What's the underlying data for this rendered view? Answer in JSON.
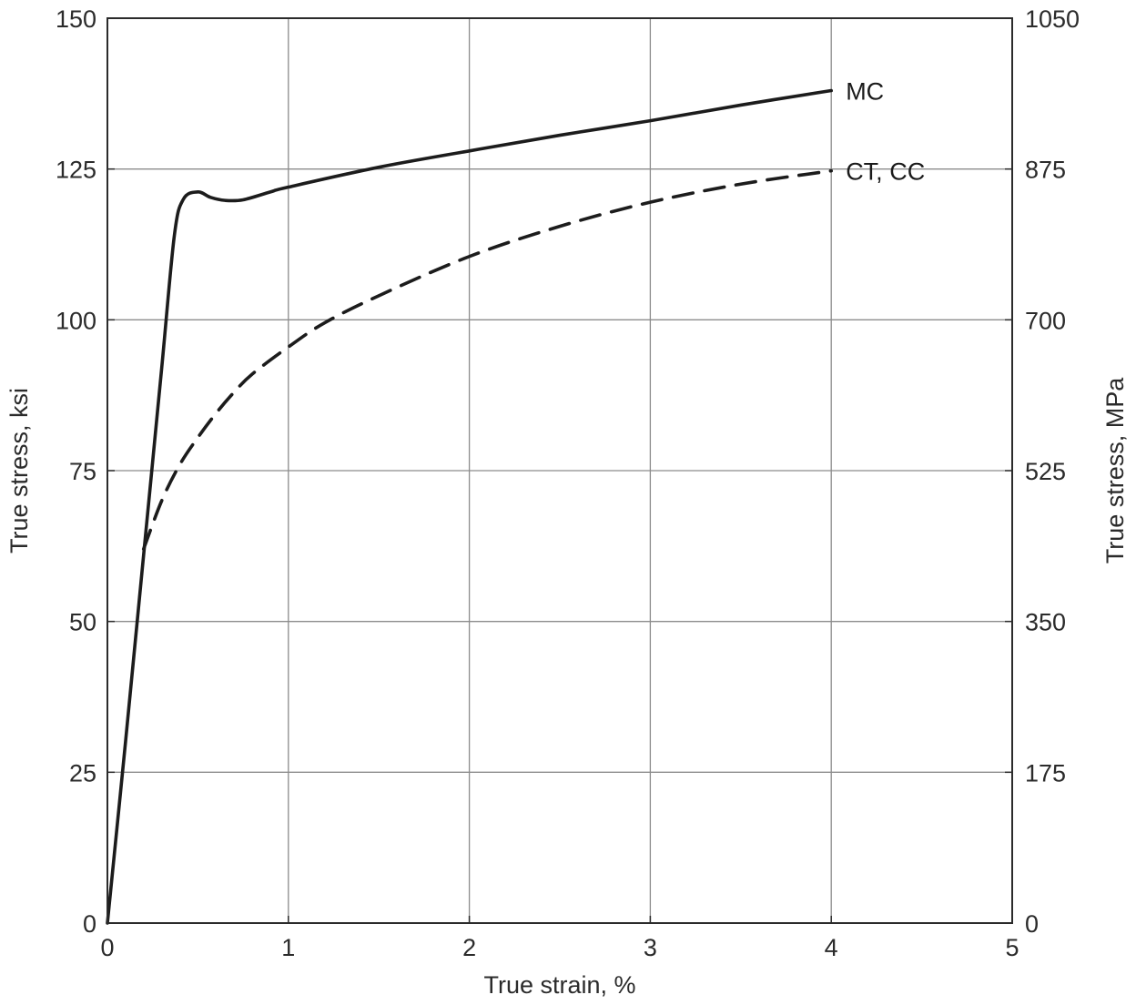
{
  "chart_data": {
    "type": "line",
    "xlabel": "True strain, %",
    "ylabel": "True stress, ksi",
    "y2label": "True stress, MPa",
    "xlim": [
      0,
      5
    ],
    "ylim": [
      0,
      150
    ],
    "y2lim": [
      0,
      1050
    ],
    "x_ticks": [
      0,
      1,
      2,
      3,
      4,
      5
    ],
    "x_tick_labels": [
      "0",
      "1",
      "2",
      "3",
      "4",
      "5"
    ],
    "y_ticks": [
      0,
      25,
      50,
      75,
      100,
      125,
      150
    ],
    "y_tick_labels": [
      "0",
      "25",
      "50",
      "75",
      "100",
      "125",
      "150"
    ],
    "y2_ticks": [
      0,
      175,
      350,
      525,
      700,
      875,
      1050
    ],
    "y2_tick_labels": [
      "0",
      "175",
      "350",
      "525",
      "700",
      "875",
      "1050"
    ],
    "grid": true,
    "series": [
      {
        "name": "MC",
        "style": "solid",
        "x": [
          0,
          0.1,
          0.2,
          0.3,
          0.37,
          0.42,
          0.5,
          0.57,
          0.65,
          0.75,
          0.9,
          1.0,
          1.5,
          2.0,
          2.5,
          3.0,
          3.5,
          4.0
        ],
        "y": [
          0,
          30,
          61,
          92,
          114,
          120,
          121.2,
          120.3,
          119.8,
          119.9,
          121.2,
          122,
          125.3,
          128,
          130.6,
          133,
          135.6,
          138
        ]
      },
      {
        "name": "CT, CC",
        "style": "dashed",
        "x": [
          0.2,
          0.3,
          0.4,
          0.5,
          0.6,
          0.7,
          0.8,
          1.0,
          1.2,
          1.5,
          2.0,
          2.5,
          3.0,
          3.5,
          4.0
        ],
        "y": [
          62,
          70,
          76,
          80.5,
          84.5,
          88,
          91,
          95.5,
          99.5,
          104,
          110.5,
          115.5,
          119.5,
          122.5,
          124.7
        ]
      }
    ]
  }
}
